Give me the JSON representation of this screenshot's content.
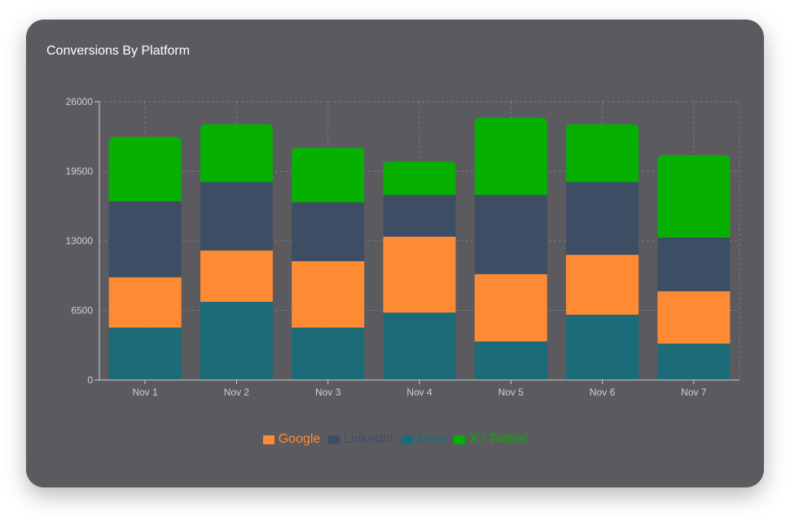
{
  "card": {
    "title": "Conversions By Platform"
  },
  "colors": {
    "card_bg": "#5b5b5f",
    "grid": "#7a7a80",
    "axis": "#cfcfd3"
  },
  "chart_data": {
    "type": "bar",
    "stacked": true,
    "title": "Conversions By Platform",
    "xlabel": "",
    "ylabel": "",
    "ylim": [
      0,
      26000
    ],
    "yticks": [
      "0",
      "6500",
      "13000",
      "19500",
      "26000"
    ],
    "categories": [
      "Nov 1",
      "Nov 2",
      "Nov 3",
      "Nov 4",
      "Nov 5",
      "Nov 6",
      "Nov 7"
    ],
    "grid": true,
    "legend_position": "bottom-center",
    "series": [
      {
        "name": "Meta",
        "color": "#1b6b78",
        "values": [
          4900,
          7300,
          4900,
          6300,
          3600,
          6100,
          3400
        ]
      },
      {
        "name": "Google",
        "color": "#ff8a34",
        "values": [
          4700,
          4800,
          6200,
          7100,
          6300,
          5600,
          4900
        ]
      },
      {
        "name": "LinkedIn",
        "color": "#3c4d64",
        "values": [
          7100,
          6400,
          5500,
          3900,
          7400,
          6800,
          5000
        ]
      },
      {
        "name": "X / Twitter",
        "color": "#06b000",
        "values": [
          6000,
          5400,
          5100,
          3100,
          7200,
          5400,
          7700
        ]
      }
    ],
    "legend_order": [
      "Google",
      "LinkedIn",
      "Meta",
      "X / Twitter"
    ]
  }
}
